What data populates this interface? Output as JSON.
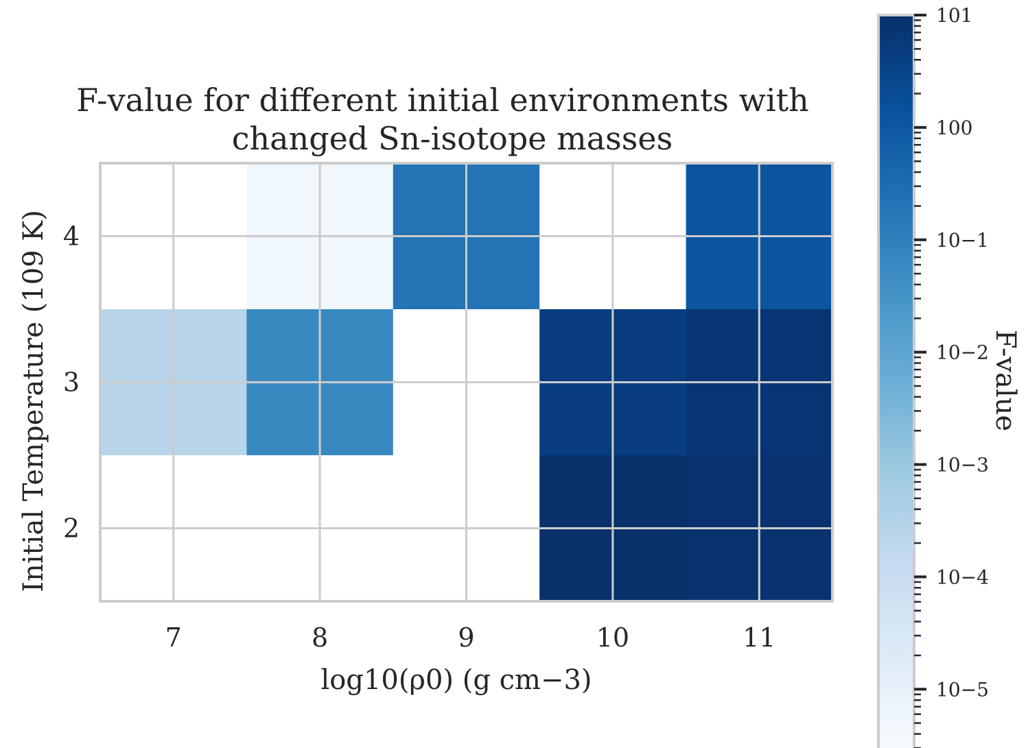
{
  "chart_data": {
    "type": "heatmap",
    "title_line1": "F-value for different initial environments with",
    "title_line2": "changed Sn-isotope masses",
    "xlabel": "log10(ρ0) (g cm−3)",
    "ylabel": "Initial Temperature (109 K)",
    "colorbar_label": "F-value",
    "x_ticks": [
      "7",
      "8",
      "9",
      "10",
      "11"
    ],
    "y_ticks": [
      "4",
      "3",
      "2"
    ],
    "colorbar_ticks": [
      "101",
      "100",
      "10−1",
      "10−2",
      "10−3",
      "10−4",
      "10−5"
    ],
    "colorbar_range": [
      3e-06,
      10
    ],
    "colormap": [
      "#f7fbff",
      "#deebf7",
      "#c6dbef",
      "#9ecae1",
      "#6baed6",
      "#4292c6",
      "#2171b5",
      "#08519c",
      "#08306b"
    ],
    "scale": "log",
    "missing_color": "#ffffff",
    "x": [
      6.75,
      7.25,
      7.75,
      8.25,
      8.75,
      9.25,
      9.75,
      10.25,
      10.75,
      11.25
    ],
    "y": [
      4.25,
      3.75,
      3.25,
      2.75,
      2.25,
      1.75
    ],
    "values": [
      [
        null,
        null,
        5e-06,
        5e-06,
        0.2,
        0.2,
        null,
        null,
        1.2,
        1.2
      ],
      [
        null,
        null,
        5e-06,
        5e-06,
        0.2,
        0.2,
        null,
        null,
        1.2,
        1.2
      ],
      [
        0.00025,
        0.00025,
        0.06,
        0.06,
        null,
        null,
        4.5,
        4.5,
        7.5,
        7.5
      ],
      [
        0.00025,
        0.00025,
        0.06,
        0.06,
        null,
        null,
        4.5,
        4.5,
        7.5,
        7.5
      ],
      [
        null,
        null,
        null,
        null,
        null,
        null,
        10,
        10,
        8.5,
        8.5
      ],
      [
        null,
        null,
        null,
        null,
        null,
        null,
        10,
        10,
        8.5,
        8.5
      ]
    ],
    "grid": true,
    "colors": {
      "grid": "#cccccc",
      "frame": "#cccccc",
      "text": "#262626"
    }
  }
}
